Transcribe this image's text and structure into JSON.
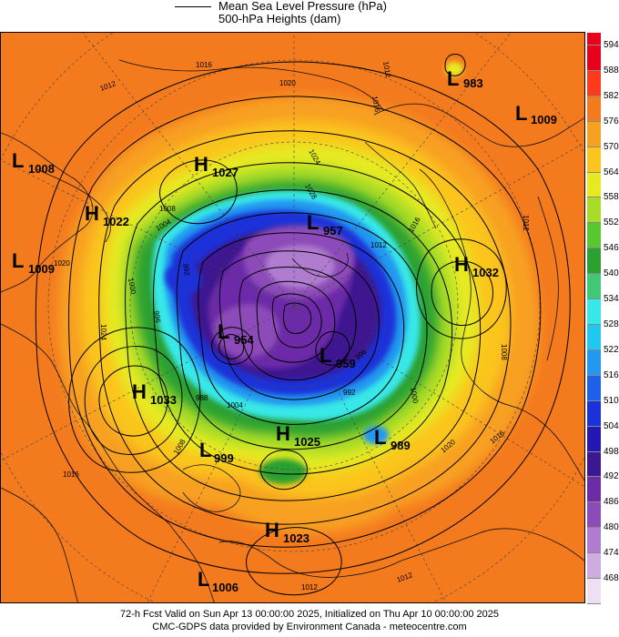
{
  "legend": {
    "line1": "Mean Sea Level Pressure (hPa)",
    "line2": "500-hPa Heights (dam)"
  },
  "colorbar": {
    "levels": [
      "594",
      "588",
      "582",
      "576",
      "570",
      "564",
      "558",
      "552",
      "546",
      "540",
      "534",
      "528",
      "522",
      "516",
      "510",
      "504",
      "498",
      "492",
      "486",
      "480",
      "474",
      "468"
    ],
    "colors": [
      "#e8001c",
      "#ff3a1a",
      "#f47a1e",
      "#f8a020",
      "#fbc51e",
      "#e6ea20",
      "#a8dc28",
      "#58c830",
      "#2ca030",
      "#40c878",
      "#38e8e8",
      "#20c8f0",
      "#2298f0",
      "#1e60e8",
      "#1a32d8",
      "#2418b0",
      "#3c1890",
      "#6c2ca8",
      "#8c4cb8",
      "#b07cd0",
      "#cfacE0",
      "#ece0f2"
    ]
  },
  "pressure_centers": [
    {
      "type": "L",
      "value": "983"
    },
    {
      "type": "L",
      "value": "1009"
    },
    {
      "type": "L",
      "value": "1008"
    },
    {
      "type": "H",
      "value": "1027"
    },
    {
      "type": "H",
      "value": "1022"
    },
    {
      "type": "L",
      "value": "1009"
    },
    {
      "type": "L",
      "value": "957"
    },
    {
      "type": "H",
      "value": "1032"
    },
    {
      "type": "L",
      "value": "954"
    },
    {
      "type": "L",
      "value": "959"
    },
    {
      "type": "H",
      "value": "1033"
    },
    {
      "type": "H",
      "value": "1025"
    },
    {
      "type": "L",
      "value": "989"
    },
    {
      "type": "L",
      "value": "999"
    },
    {
      "type": "H",
      "value": "1023"
    },
    {
      "type": "L",
      "value": "1006"
    }
  ],
  "isobar_labels": [
    "1012",
    "1016",
    "1020",
    "1024",
    "1028",
    "1012",
    "1016",
    "1008",
    "1004",
    "1000",
    "996",
    "992",
    "988",
    "1012",
    "1016",
    "1020",
    "1024",
    "1016",
    "1012",
    "1008",
    "1020",
    "1016",
    "1012",
    "992",
    "996",
    "1000",
    "1004",
    "1008",
    "1012"
  ],
  "footer": {
    "line1": "72-h Fcst Valid on Sun Apr 13 00:00:00 2025, Initialized on Thu Apr 10 00:00:00 2025",
    "line2": "CMC-GDPS data provided by Environment Canada - meteocentre.com"
  }
}
